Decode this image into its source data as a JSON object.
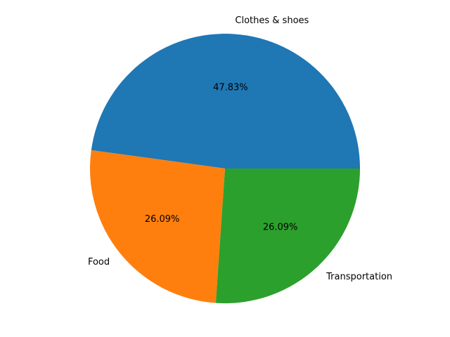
{
  "chart_data": {
    "type": "pie",
    "slices": [
      {
        "label": "Clothes & shoes",
        "value": 47.83,
        "pct_label": "47.83%",
        "color": "#1f77b4"
      },
      {
        "label": "Food",
        "value": 26.09,
        "pct_label": "26.09%",
        "color": "#ff7f0e"
      },
      {
        "label": "Transportation",
        "value": 26.09,
        "pct_label": "26.09%",
        "color": "#2ca02c"
      }
    ],
    "start_angle_deg": 0,
    "direction": "counterclockwise",
    "legend": false
  }
}
